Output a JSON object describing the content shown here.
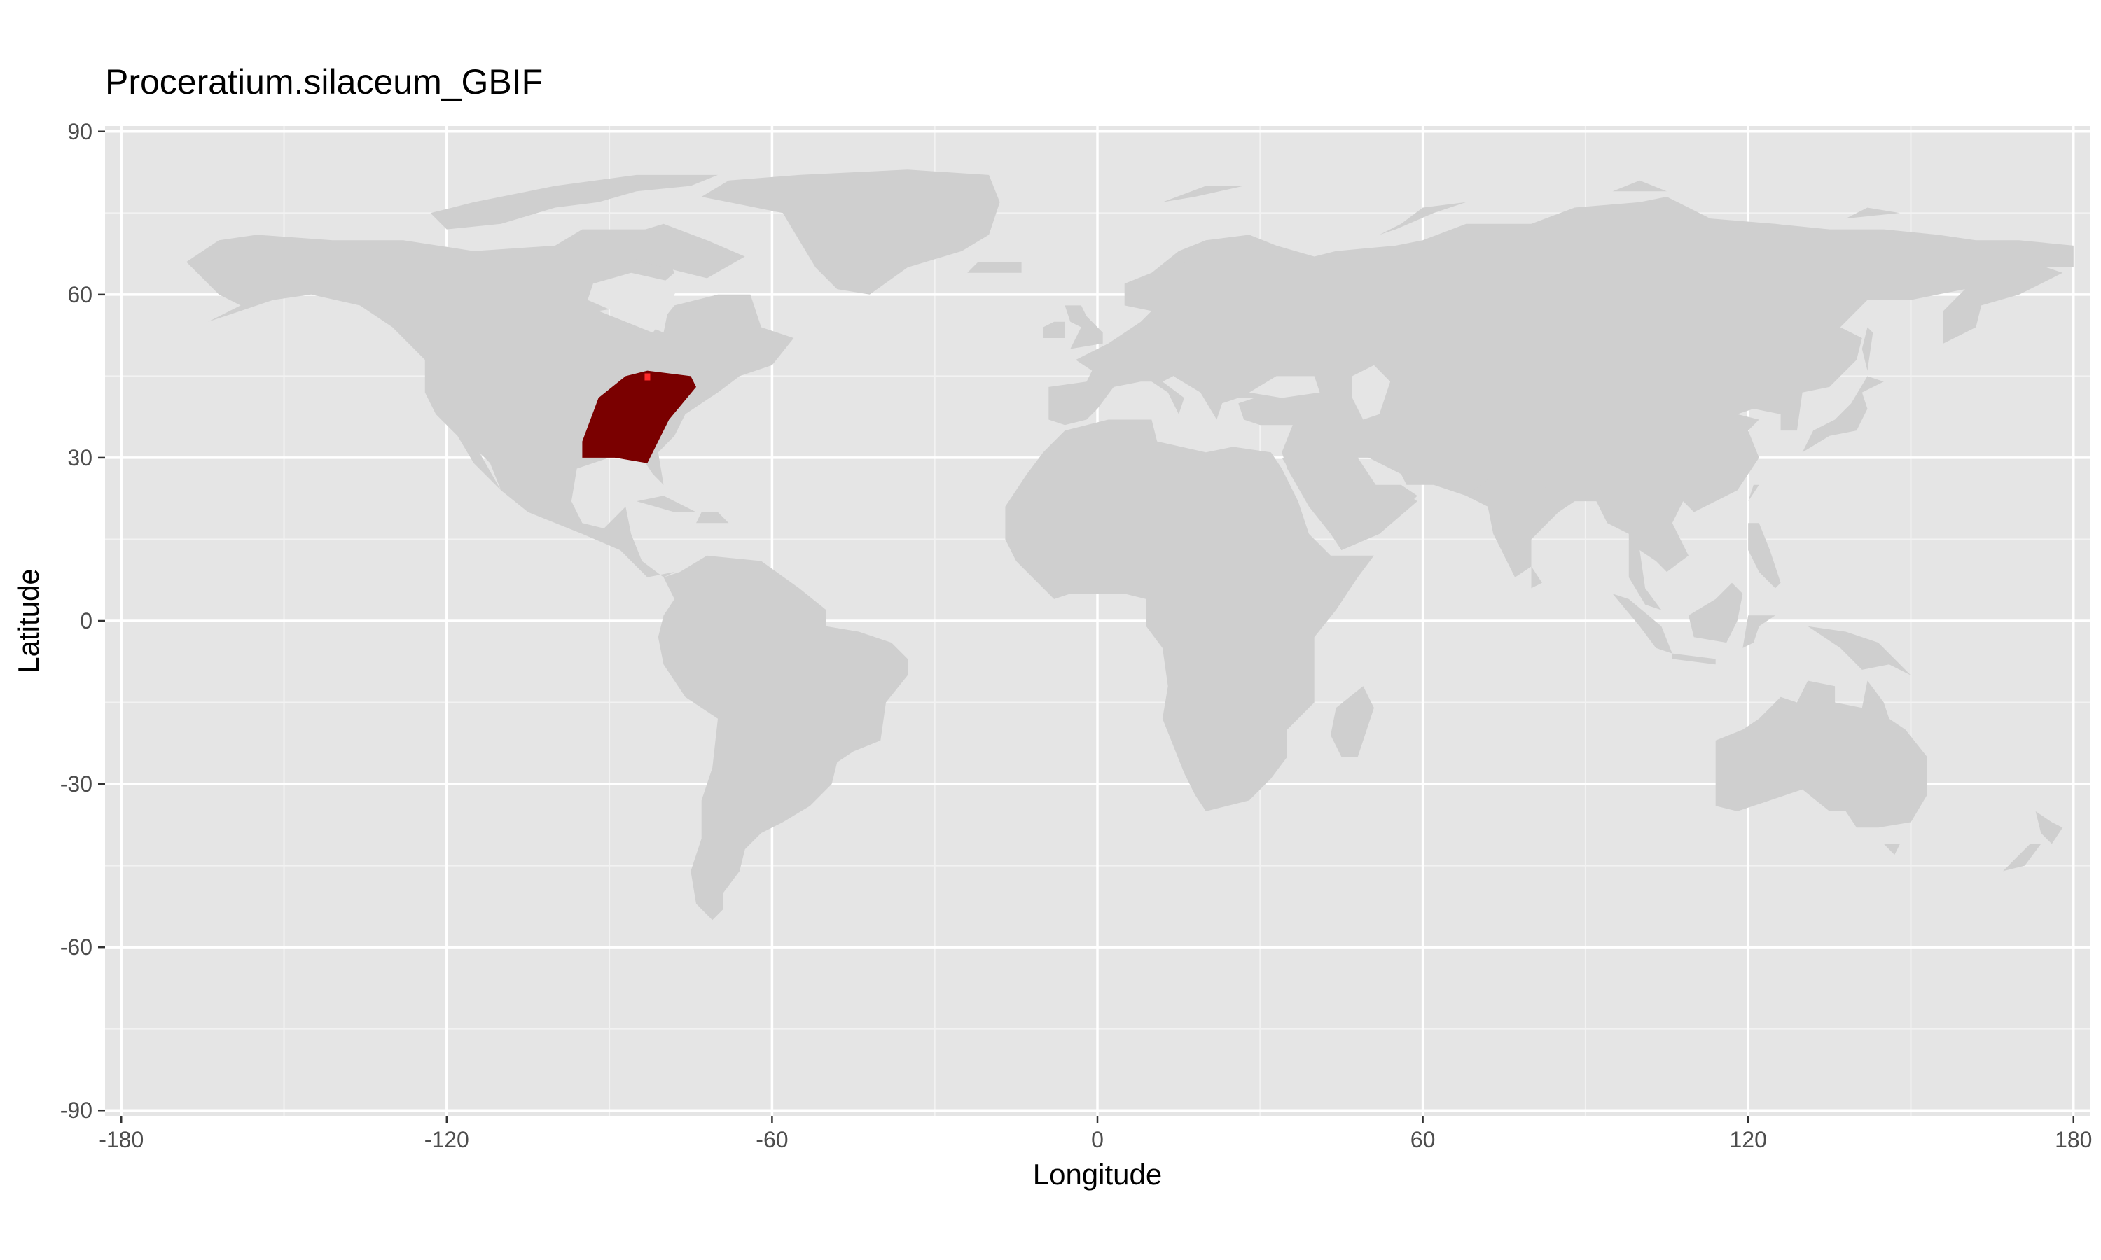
{
  "title": "Proceratium.silaceum_GBIF",
  "chart_data": {
    "type": "heatmap",
    "title": "Proceratium.silaceum_GBIF",
    "xlabel": "Longitude",
    "ylabel": "Latitude",
    "xlim": [
      -180,
      180
    ],
    "ylim": [
      -90,
      90
    ],
    "x_ticks": [
      "-180",
      "-120",
      "-60",
      "0",
      "60",
      "120",
      "180"
    ],
    "y_ticks": [
      "90",
      "60",
      "30",
      "0",
      "-30",
      "-60",
      "-90"
    ],
    "grid": true,
    "legend": "none",
    "colors": {
      "panel_background": "#e5e5e5",
      "land": "#cfcfcf",
      "occurrence_range": "#7a0000",
      "grid_major": "#ffffff"
    },
    "occurrence_region": {
      "description_values": "predicted range in eastern North America",
      "polygon_lonlat": [
        [
          -95,
          30
        ],
        [
          -89,
          30
        ],
        [
          -83,
          29
        ],
        [
          -79,
          37
        ],
        [
          -74,
          43
        ],
        [
          -75,
          45
        ],
        [
          -83,
          46
        ],
        [
          -87,
          45
        ],
        [
          -92,
          41
        ],
        [
          -95,
          33
        ]
      ]
    }
  }
}
